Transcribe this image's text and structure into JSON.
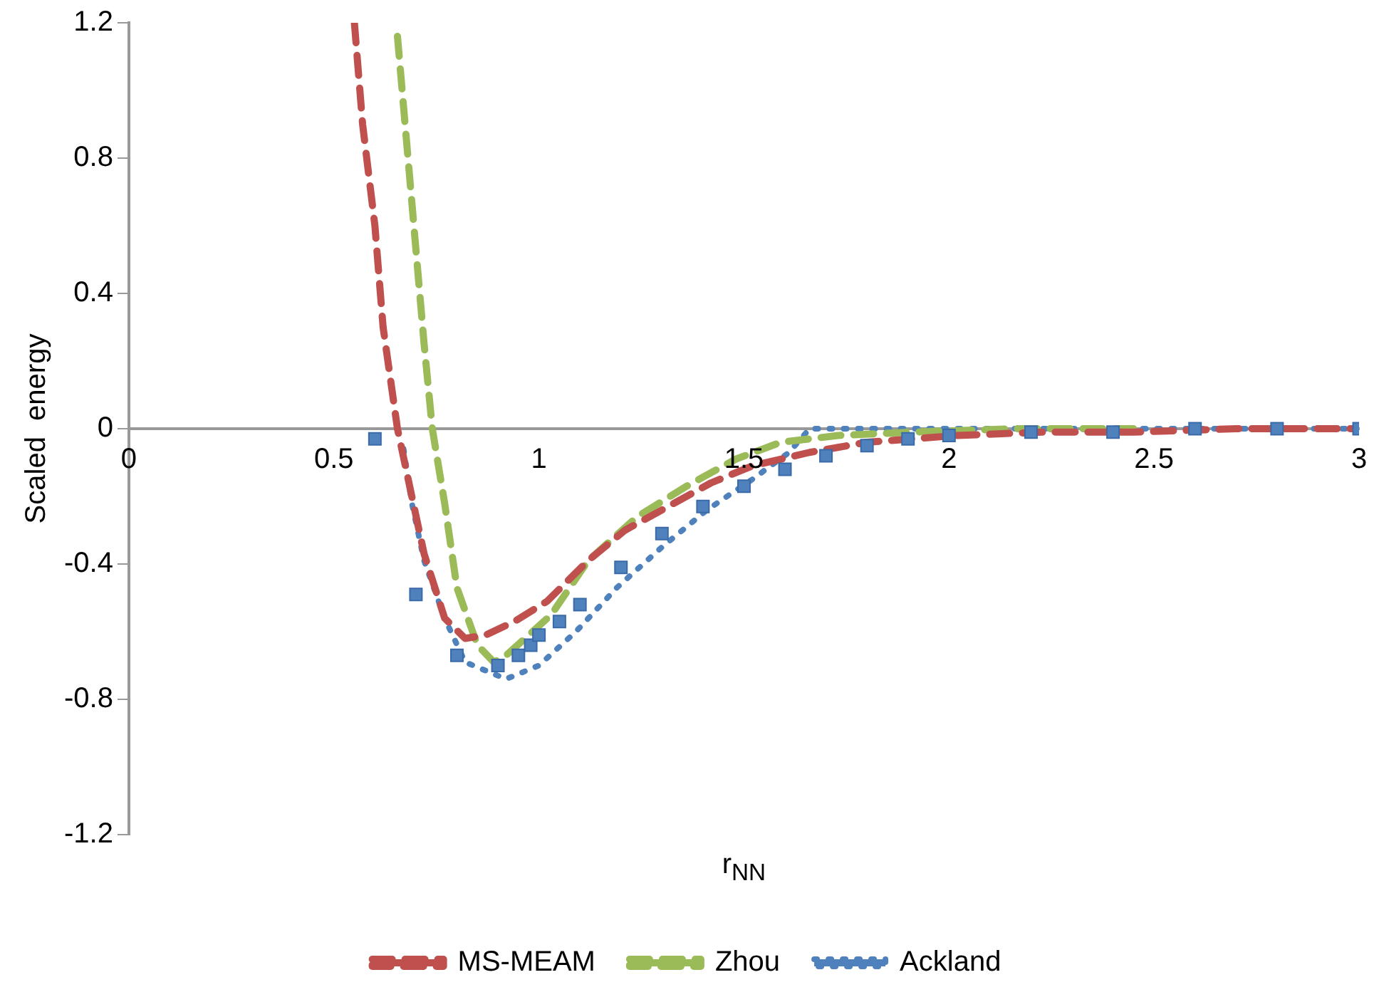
{
  "chart_data": {
    "type": "line",
    "xlabel": "r$_{NN}$",
    "ylabel": "Scaled  energy",
    "xlim": [
      0,
      3
    ],
    "xticks": [
      0,
      0.5,
      1,
      1.5,
      2,
      2.5,
      3
    ],
    "ylim": [
      -1.2,
      1.2
    ],
    "yticks": [
      -1.2,
      -0.8,
      -0.4,
      0,
      0.4,
      0.8,
      1.2
    ],
    "grid": false,
    "legend": "bottom",
    "series": [
      {
        "type": "scatter",
        "marker": "square",
        "color": "#4f81bd",
        "x": [
          0.6,
          0.7,
          0.8,
          0.9,
          0.95,
          0.98,
          1.0,
          1.05,
          1.1,
          1.2,
          1.3,
          1.4,
          1.5,
          1.6,
          1.7,
          1.8,
          1.9,
          2.0,
          2.2,
          2.4,
          2.6,
          2.8,
          3.0
        ],
        "values": [
          -0.03,
          -0.49,
          -0.67,
          -0.7,
          -0.67,
          -0.64,
          -0.61,
          -0.57,
          -0.52,
          -0.41,
          -0.31,
          -0.23,
          -0.17,
          -0.12,
          -0.08,
          -0.05,
          -0.03,
          -0.02,
          -0.01,
          -0.01,
          0,
          0,
          0
        ]
      },
      {
        "name": "MS-MEAM",
        "color": "#c0504d",
        "line_style": "dashed",
        "marker": "none",
        "x": [
          0.55,
          0.57,
          0.6,
          0.62,
          0.655,
          0.69,
          0.72,
          0.77,
          0.82,
          0.87,
          0.94,
          1.02,
          1.12,
          1.21,
          1.42,
          1.52,
          1.66,
          1.8,
          2.02,
          2.23,
          2.45,
          2.7,
          3.0
        ],
        "values": [
          1.2,
          0.9,
          0.6,
          0.3,
          0,
          -0.2,
          -0.37,
          -0.56,
          -0.62,
          -0.61,
          -0.57,
          -0.51,
          -0.39,
          -0.3,
          -0.16,
          -0.11,
          -0.07,
          -0.04,
          -0.02,
          -0.01,
          -0.01,
          0,
          0
        ]
      },
      {
        "name": "Zhou",
        "color": "#9bbb59",
        "line_style": "dashed",
        "marker": "none",
        "x": [
          0.655,
          0.69,
          0.72,
          0.74,
          0.77,
          0.8,
          0.85,
          0.89,
          0.92,
          1.03,
          1.12,
          1.24,
          1.36,
          1.48,
          1.59,
          1.73,
          1.91,
          2.16,
          2.45
        ],
        "values": [
          1.16,
          0.67,
          0.25,
          0,
          -0.22,
          -0.47,
          -0.64,
          -0.69,
          -0.67,
          -0.55,
          -0.39,
          -0.26,
          -0.17,
          -0.09,
          -0.04,
          -0.02,
          -0.01,
          0,
          0
        ]
      },
      {
        "name": "Ackland",
        "color": "#4f81bd",
        "line_style": "dotted",
        "marker": "none",
        "x": [
          0.67,
          0.69,
          0.72,
          0.77,
          0.82,
          0.92,
          1.0,
          1.09,
          1.19,
          1.3,
          1.41,
          1.52,
          1.61,
          1.66,
          2.0,
          2.5,
          3.0
        ],
        "values": [
          -0.06,
          -0.22,
          -0.39,
          -0.56,
          -0.69,
          -0.74,
          -0.7,
          -0.6,
          -0.47,
          -0.35,
          -0.24,
          -0.15,
          -0.07,
          0,
          0,
          0,
          0
        ]
      }
    ]
  }
}
